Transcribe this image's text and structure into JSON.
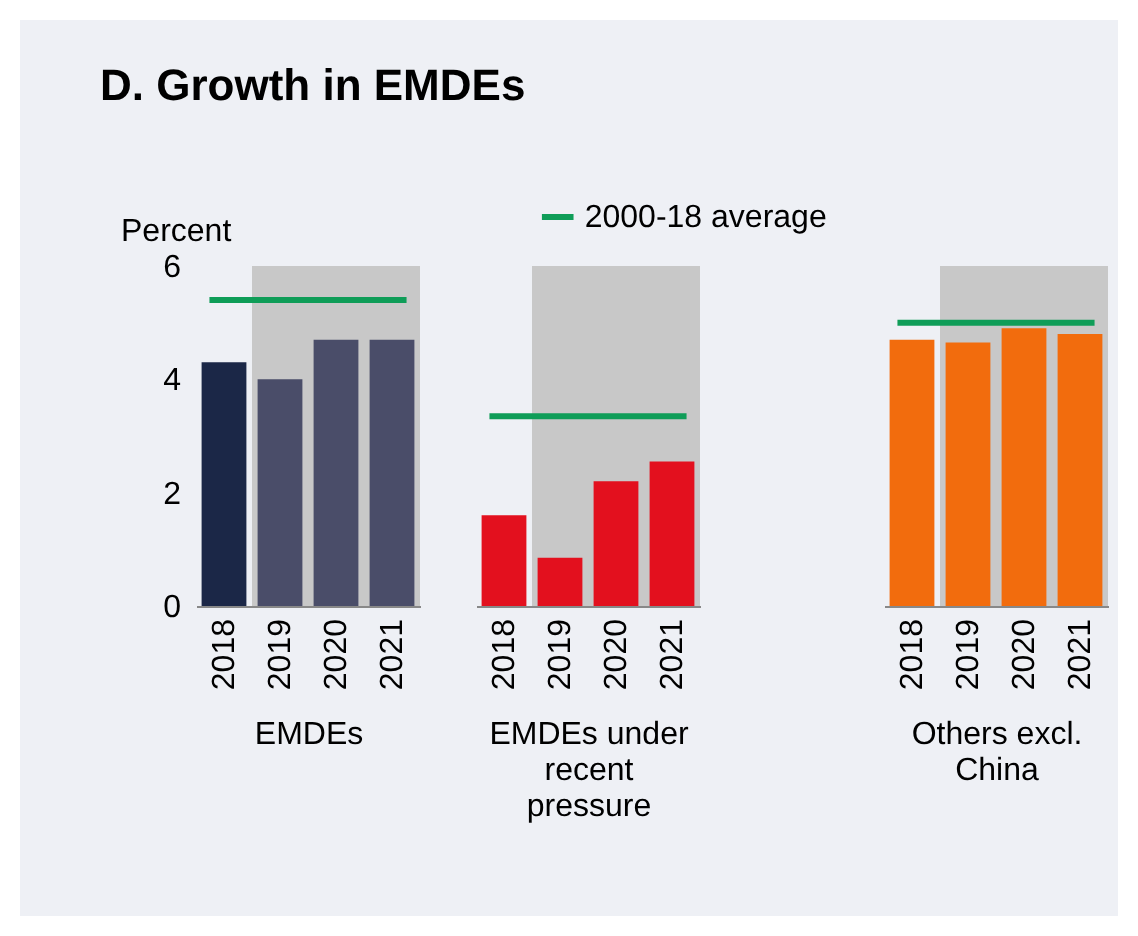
{
  "chart_data": [
    {
      "type": "bar",
      "title": "D. Growth in EMDEs",
      "ylabel": "Percent",
      "xlabel": "EMDEs",
      "categories": [
        "2018",
        "2019",
        "2020",
        "2021"
      ],
      "values": [
        4.3,
        4.0,
        4.7,
        4.7
      ],
      "colors": [
        "#1b2747",
        "#4a4d69",
        "#4a4d69",
        "#4a4d69"
      ],
      "ylim": [
        0,
        6
      ],
      "yticks": [
        0,
        2,
        4,
        6
      ],
      "grid": false,
      "bands": [
        {
          "axis": "x",
          "from": "2019",
          "to": "2021",
          "color": "#c8c8c8"
        }
      ],
      "ref_lines": [
        {
          "axis": "y",
          "value": 5.4,
          "color": "#0f9d58"
        }
      ]
    },
    {
      "type": "bar",
      "xlabel": "EMDEs under recent pressure",
      "categories": [
        "2018",
        "2019",
        "2020",
        "2021"
      ],
      "values": [
        1.6,
        0.85,
        2.2,
        2.55
      ],
      "colors": [
        "#e3101e",
        "#e3101e",
        "#e3101e",
        "#e3101e"
      ],
      "ylim": [
        0,
        6
      ],
      "yticks": [
        0,
        2,
        4,
        6
      ],
      "tick_labels": "x",
      "grid": false,
      "legend": "top right",
      "bands": [
        {
          "axis": "x",
          "from": "2019",
          "to": "2021",
          "color": "#c8c8c8"
        }
      ],
      "ref_lines": [
        {
          "axis": "y",
          "value": 3.35,
          "label": "2000-18 average",
          "color": "#0f9d58"
        }
      ]
    },
    {
      "type": "bar",
      "xlabel": "Others excl. China",
      "categories": [
        "2018",
        "2019",
        "2020",
        "2021"
      ],
      "values": [
        4.7,
        4.65,
        4.9,
        4.8
      ],
      "colors": [
        "#f26c0d",
        "#f26c0d",
        "#f26c0d",
        "#f26c0d"
      ],
      "ylim": [
        0,
        6
      ],
      "yticks": [
        0,
        2,
        4,
        6
      ],
      "tick_labels": "x",
      "grid": false,
      "bands": [
        {
          "axis": "x",
          "from": "2019",
          "to": "2021",
          "color": "#c8c8c8"
        }
      ],
      "ref_lines": [
        {
          "axis": "y",
          "value": 5.0,
          "color": "#0f9d58"
        }
      ]
    }
  ]
}
